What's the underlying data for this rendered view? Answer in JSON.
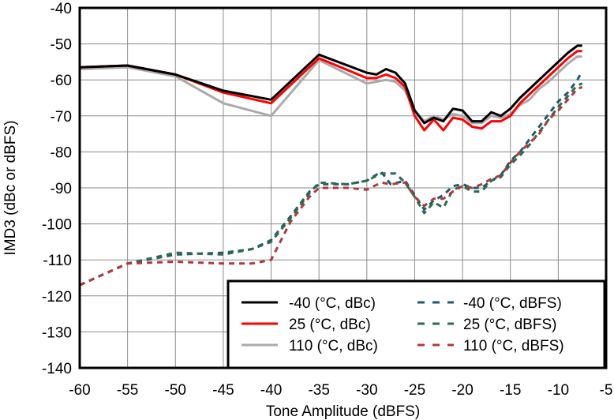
{
  "chart_data": {
    "type": "line",
    "title": "",
    "xlabel": "Tone Amplitude (dBFS)",
    "ylabel": "IMD3 (dBc or dBFS)",
    "xlim": [
      -60,
      -5
    ],
    "ylim": [
      -140,
      -40
    ],
    "xticks": [
      -60,
      -55,
      -50,
      -45,
      -40,
      -35,
      -30,
      -25,
      -20,
      -15,
      -10,
      -5
    ],
    "yticks": [
      -40,
      -50,
      -60,
      -70,
      -80,
      -90,
      -100,
      -110,
      -120,
      -130,
      -140
    ],
    "grid": true,
    "legend_position": "bottom-right",
    "series": [
      {
        "name": "-40 (°C, dBc)",
        "color": "#000000",
        "style": "solid",
        "x": [
          -60,
          -55,
          -50,
          -45,
          -40,
          -35,
          -30,
          -29,
          -28,
          -27,
          -26,
          -25,
          -24,
          -23,
          -22,
          -21,
          -20,
          -19,
          -18,
          -17,
          -16,
          -15,
          -14,
          -13,
          -12,
          -11,
          -10,
          -9,
          -8,
          -7.5
        ],
        "y": [
          -56.5,
          -56,
          -58.5,
          -63,
          -65.5,
          -53,
          -58,
          -58.5,
          -57,
          -58,
          -61,
          -68.5,
          -72,
          -70.5,
          -71.5,
          -68,
          -68.5,
          -71.5,
          -71.5,
          -69,
          -70,
          -68,
          -65,
          -62.5,
          -60,
          -57.5,
          -55,
          -52.5,
          -50.5,
          -50.5
        ]
      },
      {
        "name": "25 (°C, dBc)",
        "color": "#ff0000",
        "style": "solid",
        "x": [
          -60,
          -55,
          -50,
          -45,
          -40,
          -35,
          -30,
          -29,
          -28,
          -27,
          -26,
          -25,
          -24,
          -23,
          -22,
          -21,
          -20,
          -19,
          -18,
          -17,
          -16,
          -15,
          -14,
          -13,
          -12,
          -11,
          -10,
          -9,
          -8,
          -7.5
        ],
        "y": [
          -56.5,
          -56,
          -58.5,
          -63.5,
          -66.5,
          -54,
          -59.5,
          -59.5,
          -58.5,
          -59.5,
          -62,
          -70,
          -74,
          -71,
          -74,
          -70.5,
          -71,
          -73,
          -73.5,
          -71.5,
          -71.5,
          -70,
          -66.5,
          -64,
          -61.5,
          -59,
          -56.5,
          -54,
          -52,
          -52
        ]
      },
      {
        "name": "110 (°C, dBc)",
        "color": "#aaaaaa",
        "style": "solid",
        "x": [
          -60,
          -55,
          -50,
          -45,
          -40,
          -35,
          -30,
          -29,
          -28,
          -27,
          -26,
          -25,
          -24,
          -23,
          -22,
          -21,
          -20,
          -19,
          -18,
          -17,
          -16,
          -15,
          -14,
          -13,
          -12,
          -11,
          -10,
          -9,
          -8,
          -7.5
        ],
        "y": [
          -57,
          -56.5,
          -59,
          -66.5,
          -70,
          -54.5,
          -61,
          -60.5,
          -60,
          -60.5,
          -63,
          -68.5,
          -71.5,
          -70,
          -71,
          -69.5,
          -70,
          -72,
          -72,
          -70,
          -70.5,
          -69.5,
          -67,
          -65.5,
          -62.5,
          -60.5,
          -58,
          -55.5,
          -53.5,
          -53.5
        ]
      },
      {
        "name": "-40 (°C, dBFS)",
        "color": "#1f5b6e",
        "style": "dashed",
        "x": [
          -60,
          -55,
          -50,
          -45,
          -42,
          -40,
          -38,
          -36,
          -35,
          -32,
          -30,
          -28.5,
          -27.5,
          -26,
          -25,
          -24,
          -23,
          -22,
          -21,
          -20,
          -19,
          -18,
          -17,
          -16,
          -15,
          -14,
          -13,
          -12,
          -11,
          -10,
          -9,
          -8,
          -7.5
        ],
        "y": [
          -117,
          -111,
          -108.5,
          -108,
          -107,
          -104.5,
          -98,
          -91,
          -89,
          -89,
          -88,
          -85.5,
          -89,
          -88,
          -92,
          -96,
          -93.5,
          -92,
          -89.5,
          -89,
          -90,
          -90,
          -88,
          -86.5,
          -82.5,
          -80,
          -76.5,
          -73,
          -69.5,
          -66,
          -63.5,
          -60,
          -57.5
        ]
      },
      {
        "name": "25 (°C, dBFS)",
        "color": "#2e6b4f",
        "style": "dashed",
        "x": [
          -60,
          -55,
          -50,
          -45,
          -42,
          -40,
          -38,
          -36,
          -35,
          -32,
          -30,
          -28.5,
          -27,
          -26,
          -25,
          -24,
          -23,
          -22,
          -21,
          -20,
          -19,
          -18,
          -17,
          -16,
          -15,
          -14,
          -13,
          -12,
          -11,
          -10,
          -9,
          -8,
          -7.5
        ],
        "y": [
          -117,
          -111,
          -108,
          -108.5,
          -107,
          -105,
          -98.5,
          -91.5,
          -88.5,
          -89,
          -88,
          -86,
          -86,
          -88.5,
          -92.5,
          -97,
          -94,
          -95.5,
          -90.5,
          -89.5,
          -91,
          -91,
          -88,
          -87,
          -83.5,
          -81,
          -78,
          -74.5,
          -71,
          -67.5,
          -64.5,
          -61.5,
          -61
        ]
      },
      {
        "name": "110 (°C, dBFS)",
        "color": "#b03a3a",
        "style": "dashed",
        "x": [
          -60,
          -55,
          -50,
          -45,
          -42,
          -40,
          -38,
          -36,
          -35,
          -32,
          -30,
          -28.5,
          -27.5,
          -26,
          -25,
          -24,
          -23,
          -22,
          -21,
          -20,
          -19,
          -18,
          -17,
          -16,
          -15,
          -14,
          -13,
          -12,
          -11,
          -10,
          -9,
          -8,
          -7.5
        ],
        "y": [
          -117,
          -111,
          -110.5,
          -111,
          -111,
          -110,
          -99.5,
          -92.5,
          -90,
          -90,
          -90.5,
          -88.5,
          -89,
          -88.5,
          -92.5,
          -95,
          -93,
          -93,
          -91,
          -89.5,
          -90,
          -89,
          -87.5,
          -86.5,
          -83,
          -80,
          -77.5,
          -75,
          -71,
          -68.5,
          -65.5,
          -62.5,
          -62
        ]
      }
    ]
  }
}
